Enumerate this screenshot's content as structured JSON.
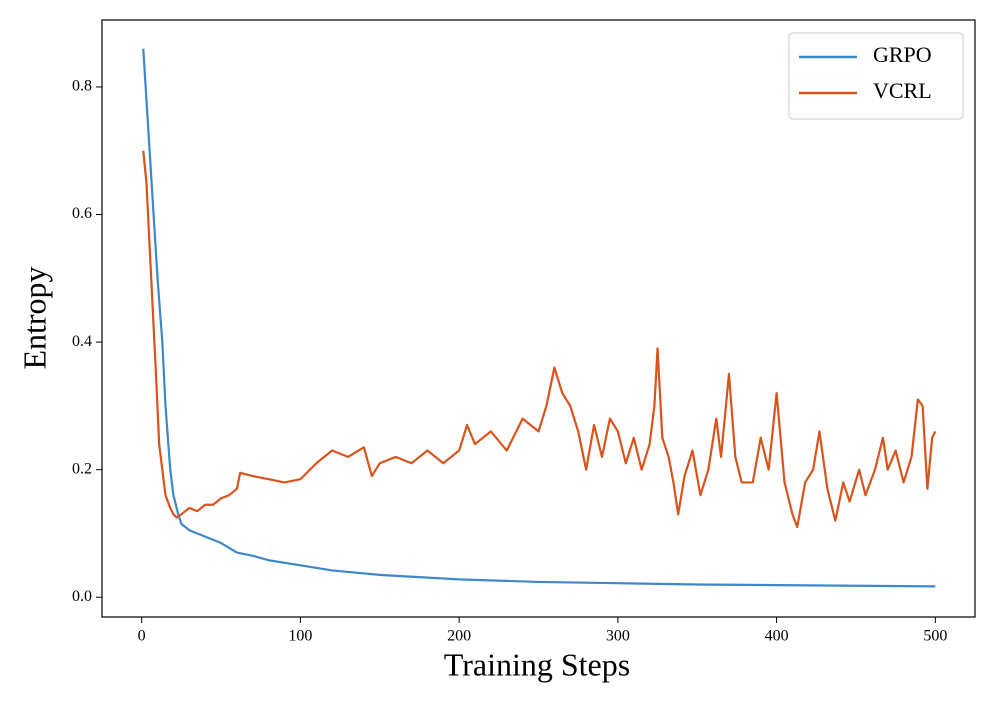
{
  "chart_data": {
    "type": "line",
    "xlabel": "Training Steps",
    "ylabel": "Entropy",
    "xlim": [
      -25,
      525
    ],
    "ylim": [
      -0.031,
      0.905
    ],
    "xticks": [
      0,
      100,
      200,
      300,
      400,
      500
    ],
    "yticks": [
      {
        "value": 0,
        "label": "0.0"
      },
      0.2,
      0.4,
      0.6,
      0.8
    ],
    "legend": "upper right",
    "series": [
      {
        "name": "GRPO",
        "color": "#3f87c8",
        "x": [
          1,
          3,
          5,
          7,
          10,
          13,
          15,
          18,
          20,
          23,
          25,
          30,
          40,
          50,
          60,
          70,
          80,
          100,
          120,
          150,
          200,
          250,
          300,
          350,
          400,
          450,
          500
        ],
        "values": [
          0.86,
          0.78,
          0.7,
          0.62,
          0.5,
          0.4,
          0.3,
          0.2,
          0.16,
          0.13,
          0.115,
          0.105,
          0.095,
          0.085,
          0.07,
          0.065,
          0.058,
          0.05,
          0.042,
          0.035,
          0.028,
          0.024,
          0.022,
          0.02,
          0.019,
          0.018,
          0.017
        ]
      },
      {
        "name": "VCRL",
        "color": "#d9541c",
        "x": [
          1,
          3,
          5,
          7,
          9,
          11,
          13,
          15,
          18,
          20,
          22,
          25,
          30,
          35,
          40,
          45,
          50,
          55,
          60,
          62,
          70,
          80,
          90,
          100,
          110,
          120,
          130,
          140,
          145,
          150,
          160,
          170,
          180,
          190,
          200,
          205,
          210,
          220,
          230,
          240,
          250,
          255,
          260,
          265,
          270,
          275,
          280,
          285,
          290,
          295,
          300,
          305,
          310,
          315,
          320,
          323,
          325,
          328,
          332,
          335,
          338,
          342,
          347,
          352,
          357,
          362,
          365,
          370,
          374,
          378,
          385,
          390,
          395,
          400,
          405,
          410,
          413,
          418,
          423,
          427,
          432,
          437,
          442,
          446,
          452,
          456,
          462,
          467,
          470,
          475,
          480,
          485,
          489,
          492,
          495,
          498,
          500
        ],
        "values": [
          0.7,
          0.65,
          0.55,
          0.45,
          0.35,
          0.24,
          0.2,
          0.16,
          0.14,
          0.13,
          0.125,
          0.13,
          0.14,
          0.135,
          0.145,
          0.145,
          0.155,
          0.16,
          0.17,
          0.195,
          0.19,
          0.185,
          0.18,
          0.185,
          0.21,
          0.23,
          0.22,
          0.235,
          0.19,
          0.21,
          0.22,
          0.21,
          0.23,
          0.21,
          0.23,
          0.27,
          0.24,
          0.26,
          0.23,
          0.28,
          0.26,
          0.3,
          0.36,
          0.32,
          0.3,
          0.26,
          0.2,
          0.27,
          0.22,
          0.28,
          0.26,
          0.21,
          0.25,
          0.2,
          0.24,
          0.3,
          0.39,
          0.25,
          0.22,
          0.18,
          0.13,
          0.19,
          0.23,
          0.16,
          0.2,
          0.28,
          0.22,
          0.35,
          0.22,
          0.18,
          0.18,
          0.25,
          0.2,
          0.32,
          0.18,
          0.13,
          0.11,
          0.18,
          0.2,
          0.26,
          0.17,
          0.12,
          0.18,
          0.15,
          0.2,
          0.16,
          0.2,
          0.25,
          0.2,
          0.23,
          0.18,
          0.22,
          0.31,
          0.3,
          0.17,
          0.25,
          0.26
        ]
      }
    ]
  }
}
